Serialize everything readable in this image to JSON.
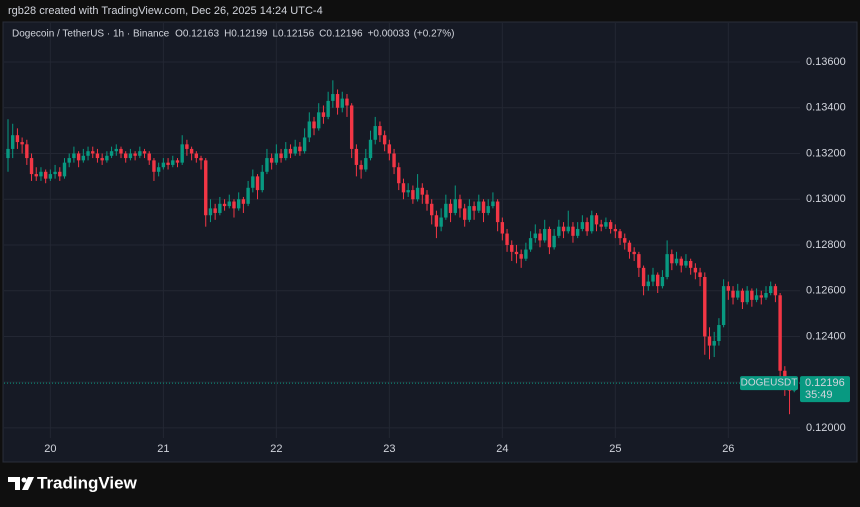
{
  "header": {
    "credit": "rgb28 created with TradingView.com, Dec 26, 2025 14:24 UTC-4",
    "brand": "TradingView"
  },
  "chart_data": {
    "type": "candlestick",
    "symbol": "Dogecoin / TetherUS · 1h · Binance",
    "header_values": [
      {
        "key": "O",
        "value": 0.12163,
        "label": "0.12163"
      },
      {
        "key": "H",
        "value": 0.12199,
        "label": "0.12199"
      },
      {
        "key": "L",
        "value": 0.12156,
        "label": "0.12156"
      },
      {
        "key": "C",
        "value": 0.12196,
        "label": "0.12196"
      }
    ],
    "change": {
      "value": 0.00033,
      "label": "+0.00033"
    },
    "change_pct": {
      "value": 0.27,
      "label": "(+0.27%)"
    },
    "up_color": "#089981",
    "down_color": "#f23645",
    "ylim": [
      0.11851,
      0.13775
    ],
    "yticks": [
      {
        "value": 0.12,
        "label": "0.12000"
      },
      {
        "value": 0.122,
        "label": "0.12200"
      },
      {
        "value": 0.124,
        "label": "0.12400"
      },
      {
        "value": 0.126,
        "label": "0.12600"
      },
      {
        "value": 0.128,
        "label": "0.12800"
      },
      {
        "value": 0.13,
        "label": "0.13000"
      },
      {
        "value": 0.132,
        "label": "0.13200"
      },
      {
        "value": 0.134,
        "label": "0.13400"
      },
      {
        "value": 0.136,
        "label": "0.13600"
      }
    ],
    "x_labels": [
      "20",
      "21",
      "22",
      "23",
      "24",
      "25",
      "26"
    ],
    "grid": true,
    "price_tag": {
      "symbol": "DOGEUSDT",
      "value": 0.12196,
      "label": "0.12196",
      "countdown": "35:49"
    },
    "candles": [
      [
        0.1318,
        0.1335,
        0.1312,
        0.1322
      ],
      [
        0.1322,
        0.1333,
        0.1318,
        0.1328
      ],
      [
        0.1328,
        0.1331,
        0.1322,
        0.1325
      ],
      [
        0.1325,
        0.1327,
        0.132,
        0.1324
      ],
      [
        0.1324,
        0.1326,
        0.1315,
        0.1318
      ],
      [
        0.1318,
        0.132,
        0.1308,
        0.1311
      ],
      [
        0.1311,
        0.1314,
        0.1308,
        0.131
      ],
      [
        0.131,
        0.1314,
        0.1308,
        0.1312
      ],
      [
        0.1312,
        0.1313,
        0.1307,
        0.1309
      ],
      [
        0.1309,
        0.1313,
        0.1308,
        0.1311
      ],
      [
        0.1311,
        0.1315,
        0.1309,
        0.1312
      ],
      [
        0.1312,
        0.1314,
        0.1308,
        0.131
      ],
      [
        0.131,
        0.1318,
        0.1309,
        0.1316
      ],
      [
        0.1316,
        0.132,
        0.1314,
        0.1318
      ],
      [
        0.1318,
        0.1323,
        0.1316,
        0.132
      ],
      [
        0.132,
        0.1321,
        0.1314,
        0.1317
      ],
      [
        0.1317,
        0.1322,
        0.1316,
        0.1319
      ],
      [
        0.1319,
        0.1323,
        0.1317,
        0.1321
      ],
      [
        0.1321,
        0.1323,
        0.1318,
        0.132
      ],
      [
        0.132,
        0.1322,
        0.1316,
        0.1318
      ],
      [
        0.1318,
        0.132,
        0.1315,
        0.1317
      ],
      [
        0.1317,
        0.1321,
        0.1316,
        0.1319
      ],
      [
        0.1319,
        0.1323,
        0.1318,
        0.1321
      ],
      [
        0.1321,
        0.1324,
        0.1319,
        0.1322
      ],
      [
        0.1322,
        0.1323,
        0.1318,
        0.132
      ],
      [
        0.132,
        0.1321,
        0.1316,
        0.1318
      ],
      [
        0.1318,
        0.1322,
        0.1317,
        0.132
      ],
      [
        0.132,
        0.1321,
        0.1317,
        0.1319
      ],
      [
        0.1319,
        0.1323,
        0.1318,
        0.1321
      ],
      [
        0.1321,
        0.1322,
        0.1318,
        0.132
      ],
      [
        0.132,
        0.1321,
        0.1315,
        0.1317
      ],
      [
        0.1317,
        0.1318,
        0.1308,
        0.1312
      ],
      [
        0.1312,
        0.1316,
        0.131,
        0.1314
      ],
      [
        0.1314,
        0.1318,
        0.1313,
        0.1316
      ],
      [
        0.1316,
        0.1318,
        0.1313,
        0.1315
      ],
      [
        0.1315,
        0.1319,
        0.1314,
        0.1317
      ],
      [
        0.1317,
        0.1318,
        0.1314,
        0.1316
      ],
      [
        0.1316,
        0.1328,
        0.1315,
        0.1324
      ],
      [
        0.1324,
        0.1326,
        0.1319,
        0.1322
      ],
      [
        0.1322,
        0.1323,
        0.1317,
        0.132
      ],
      [
        0.132,
        0.1321,
        0.1316,
        0.1318
      ],
      [
        0.1318,
        0.1319,
        0.1313,
        0.1317
      ],
      [
        0.1317,
        0.1318,
        0.1288,
        0.1293
      ],
      [
        0.1293,
        0.13,
        0.129,
        0.1296
      ],
      [
        0.1296,
        0.1298,
        0.1291,
        0.1294
      ],
      [
        0.1294,
        0.1301,
        0.1293,
        0.1298
      ],
      [
        0.1298,
        0.13,
        0.1295,
        0.1297
      ],
      [
        0.1297,
        0.1302,
        0.1296,
        0.1299
      ],
      [
        0.1299,
        0.13,
        0.1292,
        0.1296
      ],
      [
        0.1296,
        0.1303,
        0.1295,
        0.13
      ],
      [
        0.13,
        0.1301,
        0.1294,
        0.1298
      ],
      [
        0.1298,
        0.1308,
        0.1297,
        0.1305
      ],
      [
        0.1305,
        0.1313,
        0.1303,
        0.131
      ],
      [
        0.131,
        0.1311,
        0.13,
        0.1304
      ],
      [
        0.1304,
        0.1315,
        0.1303,
        0.1312
      ],
      [
        0.1312,
        0.1322,
        0.1311,
        0.1318
      ],
      [
        0.1318,
        0.132,
        0.1313,
        0.1316
      ],
      [
        0.1316,
        0.1324,
        0.1315,
        0.132
      ],
      [
        0.132,
        0.1322,
        0.1316,
        0.1318
      ],
      [
        0.1318,
        0.1325,
        0.1317,
        0.1322
      ],
      [
        0.1322,
        0.1324,
        0.1318,
        0.132
      ],
      [
        0.132,
        0.1326,
        0.1319,
        0.1323
      ],
      [
        0.1323,
        0.1325,
        0.1319,
        0.1321
      ],
      [
        0.1321,
        0.1331,
        0.132,
        0.1327
      ],
      [
        0.1327,
        0.1338,
        0.1325,
        0.1334
      ],
      [
        0.1334,
        0.1336,
        0.1328,
        0.1331
      ],
      [
        0.1331,
        0.1342,
        0.133,
        0.1338
      ],
      [
        0.1338,
        0.1341,
        0.1333,
        0.1336
      ],
      [
        0.1336,
        0.1347,
        0.1335,
        0.1343
      ],
      [
        0.1343,
        0.1352,
        0.134,
        0.1346
      ],
      [
        0.1346,
        0.1348,
        0.1337,
        0.134
      ],
      [
        0.134,
        0.1347,
        0.1338,
        0.1344
      ],
      [
        0.1344,
        0.1346,
        0.1336,
        0.1341
      ],
      [
        0.1341,
        0.1342,
        0.1318,
        0.1322
      ],
      [
        0.1322,
        0.1324,
        0.131,
        0.1315
      ],
      [
        0.1315,
        0.1317,
        0.1309,
        0.1313
      ],
      [
        0.1313,
        0.1322,
        0.1312,
        0.1318
      ],
      [
        0.1318,
        0.133,
        0.1317,
        0.1326
      ],
      [
        0.1326,
        0.1336,
        0.1324,
        0.1332
      ],
      [
        0.1332,
        0.1334,
        0.1325,
        0.1328
      ],
      [
        0.1328,
        0.133,
        0.1321,
        0.1324
      ],
      [
        0.1324,
        0.1326,
        0.1317,
        0.132
      ],
      [
        0.132,
        0.1322,
        0.1311,
        0.1314
      ],
      [
        0.1314,
        0.1316,
        0.1304,
        0.1307
      ],
      [
        0.1307,
        0.1309,
        0.13,
        0.1303
      ],
      [
        0.1303,
        0.1307,
        0.1301,
        0.1304
      ],
      [
        0.1304,
        0.1306,
        0.1298,
        0.13
      ],
      [
        0.13,
        0.1311,
        0.1299,
        0.1305
      ],
      [
        0.1305,
        0.1307,
        0.1298,
        0.1302
      ],
      [
        0.1302,
        0.1304,
        0.1295,
        0.1298
      ],
      [
        0.1298,
        0.13,
        0.1289,
        0.1293
      ],
      [
        0.1293,
        0.1295,
        0.1283,
        0.1288
      ],
      [
        0.1288,
        0.1296,
        0.1286,
        0.1292
      ],
      [
        0.1292,
        0.1302,
        0.1291,
        0.1298
      ],
      [
        0.1298,
        0.13,
        0.129,
        0.1294
      ],
      [
        0.1294,
        0.1306,
        0.1293,
        0.13
      ],
      [
        0.13,
        0.1302,
        0.1292,
        0.1296
      ],
      [
        0.1296,
        0.1298,
        0.1288,
        0.1291
      ],
      [
        0.1291,
        0.13,
        0.129,
        0.1297
      ],
      [
        0.1297,
        0.1299,
        0.1291,
        0.1295
      ],
      [
        0.1295,
        0.1302,
        0.1294,
        0.1299
      ],
      [
        0.1299,
        0.13,
        0.129,
        0.1294
      ],
      [
        0.1294,
        0.13,
        0.1293,
        0.1297
      ],
      [
        0.1297,
        0.1303,
        0.1296,
        0.1299
      ],
      [
        0.1299,
        0.13,
        0.1286,
        0.129
      ],
      [
        0.129,
        0.1292,
        0.1282,
        0.1285
      ],
      [
        0.1285,
        0.1287,
        0.1277,
        0.128
      ],
      [
        0.128,
        0.1282,
        0.1273,
        0.1277
      ],
      [
        0.1277,
        0.128,
        0.1272,
        0.1276
      ],
      [
        0.1276,
        0.1278,
        0.127,
        0.1274
      ],
      [
        0.1274,
        0.1281,
        0.1273,
        0.1278
      ],
      [
        0.1278,
        0.1286,
        0.1277,
        0.1283
      ],
      [
        0.1283,
        0.1289,
        0.1281,
        0.1285
      ],
      [
        0.1285,
        0.1287,
        0.1279,
        0.1282
      ],
      [
        0.1282,
        0.1291,
        0.1281,
        0.1287
      ],
      [
        0.1287,
        0.1288,
        0.1276,
        0.1279
      ],
      [
        0.1279,
        0.1287,
        0.1278,
        0.1284
      ],
      [
        0.1284,
        0.1291,
        0.1283,
        0.1288
      ],
      [
        0.1288,
        0.129,
        0.1283,
        0.1286
      ],
      [
        0.1286,
        0.1295,
        0.1285,
        0.1288
      ],
      [
        0.1288,
        0.129,
        0.1281,
        0.1284
      ],
      [
        0.1284,
        0.129,
        0.1283,
        0.1287
      ],
      [
        0.1287,
        0.1293,
        0.1286,
        0.129
      ],
      [
        0.129,
        0.1292,
        0.1284,
        0.1286
      ],
      [
        0.1286,
        0.1295,
        0.1285,
        0.1293
      ],
      [
        0.1293,
        0.1294,
        0.1286,
        0.1289
      ],
      [
        0.1289,
        0.1291,
        0.1286,
        0.1288
      ],
      [
        0.1288,
        0.1292,
        0.1287,
        0.129
      ],
      [
        0.129,
        0.1291,
        0.1285,
        0.1287
      ],
      [
        0.1287,
        0.1289,
        0.1283,
        0.1286
      ],
      [
        0.1286,
        0.1287,
        0.128,
        0.1283
      ],
      [
        0.1283,
        0.1285,
        0.1278,
        0.1281
      ],
      [
        0.1281,
        0.1282,
        0.1274,
        0.1277
      ],
      [
        0.1277,
        0.1279,
        0.1273,
        0.1276
      ],
      [
        0.1276,
        0.1277,
        0.1266,
        0.127
      ],
      [
        0.127,
        0.1271,
        0.1258,
        0.1262
      ],
      [
        0.1262,
        0.1267,
        0.126,
        0.1264
      ],
      [
        0.1264,
        0.127,
        0.1262,
        0.1267
      ],
      [
        0.1267,
        0.1268,
        0.1259,
        0.1262
      ],
      [
        0.1262,
        0.1269,
        0.1261,
        0.1266
      ],
      [
        0.1266,
        0.1282,
        0.1265,
        0.1276
      ],
      [
        0.1276,
        0.1278,
        0.1269,
        0.1272
      ],
      [
        0.1272,
        0.1277,
        0.1271,
        0.1274
      ],
      [
        0.1274,
        0.1275,
        0.1268,
        0.1271
      ],
      [
        0.1271,
        0.1276,
        0.127,
        0.1273
      ],
      [
        0.1273,
        0.1274,
        0.1267,
        0.127
      ],
      [
        0.127,
        0.1272,
        0.1265,
        0.1268
      ],
      [
        0.1268,
        0.127,
        0.1262,
        0.1266
      ],
      [
        0.1266,
        0.1268,
        0.1232,
        0.124
      ],
      [
        0.124,
        0.1244,
        0.123,
        0.1236
      ],
      [
        0.1236,
        0.1242,
        0.1231,
        0.1238
      ],
      [
        0.1238,
        0.1248,
        0.1236,
        0.1245
      ],
      [
        0.1245,
        0.1265,
        0.1244,
        0.1262
      ],
      [
        0.1262,
        0.1264,
        0.1256,
        0.126
      ],
      [
        0.126,
        0.1262,
        0.1254,
        0.1257
      ],
      [
        0.1257,
        0.1263,
        0.1256,
        0.126
      ],
      [
        0.126,
        0.1261,
        0.1252,
        0.1255
      ],
      [
        0.1255,
        0.1262,
        0.1254,
        0.126
      ],
      [
        0.126,
        0.1261,
        0.1253,
        0.1256
      ],
      [
        0.1256,
        0.1261,
        0.1255,
        0.1258
      ],
      [
        0.1258,
        0.126,
        0.1254,
        0.1257
      ],
      [
        0.1257,
        0.1262,
        0.1256,
        0.1259
      ],
      [
        0.1259,
        0.1264,
        0.1258,
        0.1262
      ],
      [
        0.1262,
        0.1263,
        0.1255,
        0.1258
      ],
      [
        0.1258,
        0.1259,
        0.1222,
        0.1225
      ],
      [
        0.1225,
        0.1227,
        0.1214,
        0.1219
      ],
      [
        0.1219,
        0.1221,
        0.1206,
        0.12163
      ],
      [
        0.12163,
        0.12199,
        0.12156,
        0.12196
      ]
    ]
  }
}
